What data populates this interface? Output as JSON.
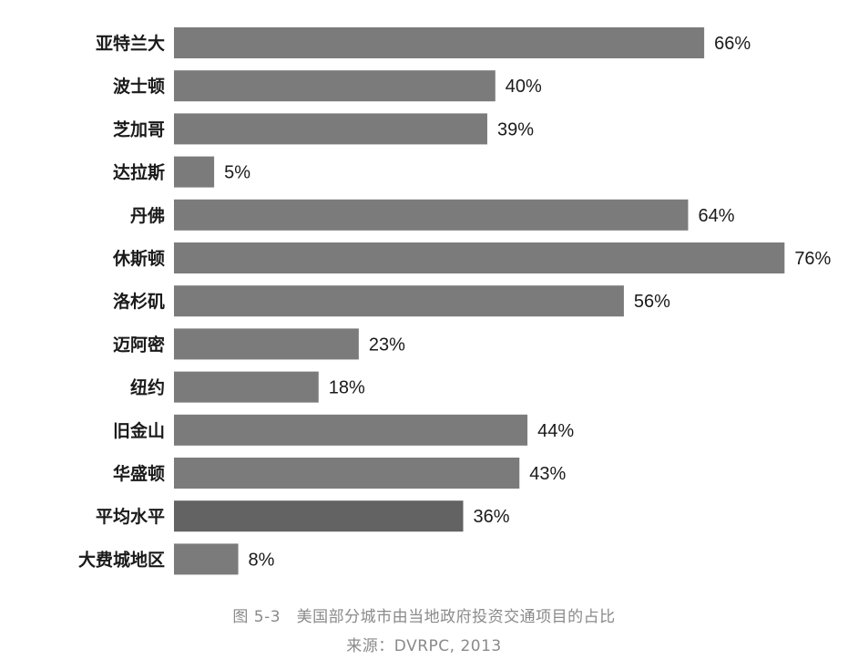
{
  "chart_data": {
    "type": "bar",
    "orientation": "horizontal",
    "categories": [
      "亚特兰大",
      "波士顿",
      "芝加哥",
      "达拉斯",
      "丹佛",
      "休斯顿",
      "洛杉矶",
      "迈阿密",
      "纽约",
      "旧金山",
      "华盛顿",
      "平均水平",
      "大费城地区"
    ],
    "values": [
      66,
      40,
      39,
      5,
      64,
      76,
      56,
      23,
      18,
      44,
      43,
      36,
      8
    ],
    "value_labels": [
      "66%",
      "40%",
      "39%",
      "5%",
      "64%",
      "76%",
      "56%",
      "23%",
      "18%",
      "44%",
      "43%",
      "36%",
      "8%"
    ],
    "unit": "%",
    "xlim": [
      0,
      76
    ],
    "grid": false,
    "bar_color": "#7b7b7b",
    "highlight_category": "平均水平",
    "highlight_color": "#636363"
  },
  "caption": {
    "title": "图 5-3　美国部分城市由当地政府投资交通项目的占比",
    "source": "来源：DVRPC, 2013"
  }
}
